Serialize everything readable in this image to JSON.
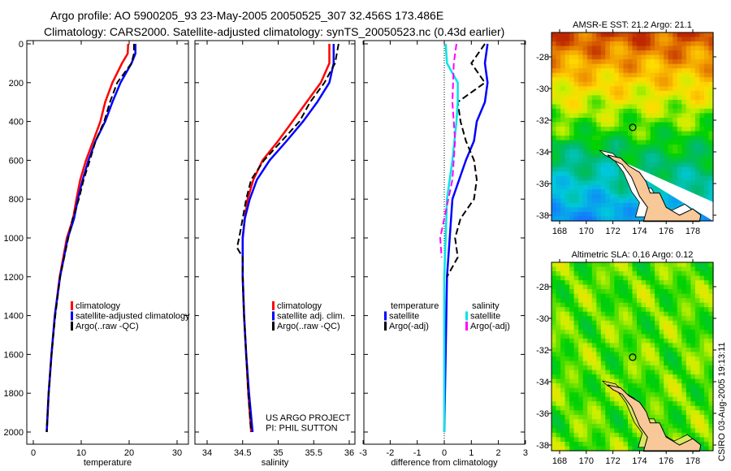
{
  "title_line1": "Argo profile: AO 5900205_93 23-May-2005 20050525_307 32.456S 173.486E",
  "title_line2": "Climatology: CARS2000. Satellite-adjusted climatology: synTS_20050523.nc (0.43d earlier)",
  "side_label": "CSIRO 03-Aug-2005 19:13:11",
  "colors": {
    "red": "#ff0000",
    "blue": "#0000ff",
    "black": "#000000",
    "cyan": "#00e5e5",
    "magenta": "#ff00ff",
    "land": "#f8c898"
  },
  "chart_data": [
    {
      "type": "line",
      "xlabel": "temperature",
      "ylabel": "",
      "xlim": [
        -2,
        32
      ],
      "ylim": [
        2050,
        0
      ],
      "xticks": [
        0,
        10,
        20,
        30
      ],
      "yticks": [
        0,
        200,
        400,
        600,
        800,
        1000,
        1200,
        1400,
        1600,
        1800,
        2000
      ],
      "depth": [
        0,
        50,
        100,
        200,
        300,
        400,
        500,
        600,
        700,
        800,
        900,
        1000,
        1200,
        1400,
        1600,
        1800,
        2000
      ],
      "series": [
        {
          "name": "climatology",
          "color": "red",
          "dash": false,
          "values": [
            19.8,
            19.7,
            18.5,
            16.5,
            15,
            14,
            12.5,
            11,
            9.8,
            9,
            8.3,
            7,
            5.5,
            4.5,
            3.8,
            3.2,
            2.8
          ]
        },
        {
          "name": "satellite-adjusted climatology",
          "color": "blue",
          "dash": false,
          "values": [
            21.3,
            21.3,
            20.5,
            18.2,
            16.5,
            15,
            13,
            11.5,
            10.3,
            9.3,
            8.5,
            7.2,
            5.6,
            4.5,
            3.8,
            3.2,
            2.8
          ]
        },
        {
          "name": "Argo(..raw -QC)",
          "color": "black",
          "dash": true,
          "values": [
            21,
            21,
            20.5,
            17.5,
            16,
            14.8,
            13,
            11.8,
            10.5,
            9.5,
            8.2,
            7.3,
            5.6,
            4.6,
            3.8,
            3.2,
            2.8
          ]
        }
      ],
      "legend_title": ""
    },
    {
      "type": "line",
      "xlabel": "salinity",
      "xlim": [
        33.82,
        36.1
      ],
      "ylim": [
        2050,
        0
      ],
      "xticks": [
        34,
        34.5,
        35,
        35.5,
        36
      ],
      "yticks": [],
      "depth": [
        0,
        100,
        200,
        300,
        400,
        500,
        600,
        700,
        800,
        900,
        1000,
        1050,
        1100,
        1200,
        1400,
        1600,
        1800,
        2000
      ],
      "series": [
        {
          "name": "climatology",
          "color": "red",
          "dash": false,
          "values": [
            35.72,
            35.72,
            35.6,
            35.4,
            35.2,
            35.0,
            34.78,
            34.65,
            34.57,
            34.53,
            34.5,
            34.5,
            34.5,
            34.5,
            34.52,
            34.55,
            34.58,
            34.62
          ]
        },
        {
          "name": "satellite adj. clim.",
          "color": "blue",
          "dash": false,
          "values": [
            35.78,
            35.78,
            35.72,
            35.55,
            35.35,
            35.12,
            34.88,
            34.7,
            34.6,
            34.53,
            34.5,
            34.5,
            34.5,
            34.5,
            34.52,
            34.55,
            34.59,
            34.64
          ]
        },
        {
          "name": "Argo(..raw -QC)",
          "color": "black",
          "dash": true,
          "values": [
            35.85,
            35.8,
            35.65,
            35.45,
            35.3,
            35.05,
            34.8,
            34.62,
            34.55,
            34.5,
            34.45,
            34.42,
            34.5,
            34.5,
            34.52,
            34.55,
            34.58,
            34.62
          ]
        }
      ],
      "annotations": [
        "US ARGO PROJECT",
        "PI: PHIL SUTTON"
      ]
    },
    {
      "type": "line",
      "xlabel": "difference from climatology",
      "xlim": [
        -3,
        3
      ],
      "ylim": [
        2050,
        0
      ],
      "xticks": [
        -3,
        -2,
        -1,
        0,
        1,
        2,
        3
      ],
      "yticks": [],
      "legend_left_title": "temperature",
      "legend_right_title": "salinity",
      "series": [
        {
          "name": "satellite",
          "group": "temperature",
          "color": "blue",
          "dash": false,
          "depth": [
            0,
            100,
            200,
            300,
            400,
            500,
            600,
            800,
            1000,
            1200,
            1600,
            2000
          ],
          "values": [
            1.6,
            1.5,
            1.6,
            1.5,
            1.2,
            1.1,
            0.8,
            0.3,
            0.2,
            0.1,
            0.05,
            0
          ]
        },
        {
          "name": "Argo(-adj)",
          "group": "temperature",
          "color": "black",
          "dash": true,
          "depth": [
            0,
            100,
            200,
            300,
            400,
            500,
            600,
            700,
            800,
            900,
            1000,
            1100,
            1200
          ],
          "values": [
            1.5,
            1.0,
            1.5,
            0.5,
            0.6,
            0.8,
            1.1,
            1.2,
            1.1,
            0.6,
            0.4,
            0.5,
            0.1
          ]
        },
        {
          "name": "satellite",
          "group": "salinity",
          "color": "cyan",
          "dash": false,
          "depth": [
            0,
            100,
            200,
            300,
            400,
            600,
            800,
            1000,
            1200,
            2000
          ],
          "values": [
            0.05,
            0.1,
            0.5,
            0.5,
            0.45,
            0.3,
            0.1,
            0.05,
            0,
            0
          ]
        },
        {
          "name": "Argo(-adj)",
          "group": "salinity",
          "color": "magenta",
          "dash": true,
          "depth": [
            0,
            100,
            300,
            500,
            700,
            900,
            1000,
            1100
          ],
          "values": [
            0.45,
            0.35,
            0.3,
            0.4,
            0.3,
            0,
            -0.15,
            -0.1
          ]
        }
      ]
    },
    {
      "type": "heatmap",
      "title": "AMSR-E SST: 21.2 Argo: 21.1",
      "field": "sst",
      "xticks": [
        168,
        170,
        172,
        174,
        176,
        178
      ],
      "yticks": [
        -28,
        -30,
        -32,
        -34,
        -36,
        -38
      ],
      "lonlim": [
        167.4,
        179.6
      ],
      "latlim": [
        -38.4,
        -26.5
      ],
      "float_position": [
        173.486,
        -32.456
      ]
    },
    {
      "type": "heatmap",
      "title": "Altimetric SLA: 0.16 Argo: 0.12",
      "field": "sla",
      "xticks": [
        168,
        170,
        172,
        174,
        176,
        178
      ],
      "yticks": [
        -28,
        -30,
        -32,
        -34,
        -36,
        -38
      ],
      "lonlim": [
        167.4,
        179.6
      ],
      "latlim": [
        -38.4,
        -26.5
      ],
      "float_position": [
        173.486,
        -32.456
      ]
    }
  ]
}
